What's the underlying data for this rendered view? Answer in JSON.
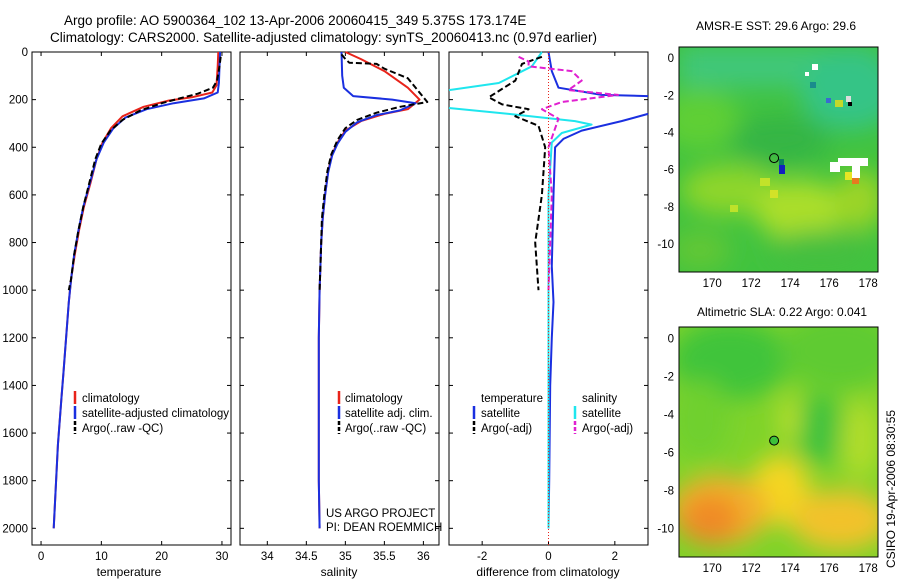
{
  "figure": {
    "title_line1": "Argo profile: AO 5900364_102 13-Apr-2006 20060415_349 5.375S 173.174E",
    "title_line2": "Climatology: CARS2000. Satellite-adjusted climatology: synTS_20060413.nc (0.97d earlier)",
    "side_label": "CSIRO 19-Apr-2006 08:30:55",
    "project_line1": "US ARGO PROJECT",
    "project_line2": "PI: DEAN ROEMMICH"
  },
  "colors": {
    "climatology": "#e8231a",
    "satellite": "#1a2fe0",
    "argo": "#000000",
    "argo_adj": "#e020d0",
    "salinity_diff": "#1fe6ee"
  },
  "chart_data": [
    {
      "type": "line",
      "id": "temperature",
      "xlabel": "temperature",
      "xlim": [
        -1.5,
        31.5
      ],
      "ylim": [
        2070,
        0
      ],
      "xticks": [
        0,
        10,
        20,
        30
      ],
      "yticks": [
        0,
        200,
        400,
        600,
        800,
        1000,
        1200,
        1400,
        1600,
        1800,
        2000
      ],
      "legend": [
        "climatology",
        "satellite-adjusted climatology",
        "Argo(..raw -QC)"
      ],
      "series": [
        {
          "name": "climatology",
          "color": "#e8231a",
          "points": [
            [
              29.4,
              0
            ],
            [
              29.3,
              60
            ],
            [
              29.1,
              140
            ],
            [
              28.4,
              170
            ],
            [
              25.0,
              190
            ],
            [
              21.0,
              205
            ],
            [
              17.0,
              230
            ],
            [
              13.5,
              270
            ],
            [
              11.6,
              320
            ],
            [
              10.2,
              380
            ],
            [
              9.2,
              450
            ],
            [
              8.2,
              550
            ],
            [
              7.1,
              650
            ],
            [
              6.3,
              750
            ],
            [
              5.6,
              850
            ],
            [
              5.0,
              950
            ],
            [
              4.6,
              1050
            ],
            [
              4.3,
              1150
            ],
            [
              4.0,
              1250
            ],
            [
              3.7,
              1350
            ],
            [
              3.4,
              1450
            ],
            [
              3.1,
              1550
            ],
            [
              2.8,
              1650
            ],
            [
              2.6,
              1750
            ],
            [
              2.4,
              1850
            ],
            [
              2.2,
              1950
            ],
            [
              2.1,
              2000
            ]
          ]
        },
        {
          "name": "satellite-adjusted climatology",
          "color": "#1a2fe0",
          "points": [
            [
              29.7,
              0
            ],
            [
              29.6,
              60
            ],
            [
              29.5,
              130
            ],
            [
              29.3,
              170
            ],
            [
              27.0,
              195
            ],
            [
              22.0,
              215
            ],
            [
              17.5,
              240
            ],
            [
              14.0,
              275
            ],
            [
              12.0,
              320
            ],
            [
              10.4,
              380
            ],
            [
              9.2,
              450
            ],
            [
              8.1,
              550
            ],
            [
              7.0,
              650
            ],
            [
              6.2,
              750
            ],
            [
              5.5,
              850
            ],
            [
              5.0,
              950
            ],
            [
              4.6,
              1050
            ],
            [
              4.3,
              1150
            ],
            [
              4.0,
              1250
            ],
            [
              3.7,
              1350
            ],
            [
              3.4,
              1450
            ],
            [
              3.1,
              1550
            ],
            [
              2.8,
              1650
            ],
            [
              2.6,
              1750
            ],
            [
              2.4,
              1850
            ],
            [
              2.2,
              1950
            ],
            [
              2.1,
              2000
            ]
          ]
        },
        {
          "name": "Argo(..raw -QC)",
          "color": "#000000",
          "dashed": true,
          "points": [
            [
              29.8,
              20
            ],
            [
              29.6,
              60
            ],
            [
              29.2,
              120
            ],
            [
              28.5,
              150
            ],
            [
              26.0,
              175
            ],
            [
              23.0,
              195
            ],
            [
              20.0,
              215
            ],
            [
              16.5,
              245
            ],
            [
              13.5,
              285
            ],
            [
              11.5,
              330
            ],
            [
              10.0,
              385
            ],
            [
              9.0,
              450
            ],
            [
              8.0,
              550
            ],
            [
              7.0,
              650
            ],
            [
              6.2,
              750
            ],
            [
              5.5,
              850
            ],
            [
              5.0,
              950
            ],
            [
              4.6,
              1000
            ]
          ]
        }
      ]
    },
    {
      "type": "line",
      "id": "salinity",
      "xlabel": "salinity",
      "xlim": [
        33.65,
        36.2
      ],
      "ylim": [
        2070,
        0
      ],
      "xticks": [
        34,
        34.5,
        35,
        35.5,
        36
      ],
      "legend": [
        "climatology",
        "satellite adj. clim.",
        "Argo(..raw -QC)"
      ],
      "series": [
        {
          "name": "climatology",
          "color": "#e8231a",
          "points": [
            [
              35.0,
              0
            ],
            [
              35.2,
              30
            ],
            [
              35.5,
              80
            ],
            [
              35.8,
              150
            ],
            [
              35.95,
              200
            ],
            [
              35.8,
              240
            ],
            [
              35.5,
              260
            ],
            [
              35.2,
              290
            ],
            [
              35.0,
              330
            ],
            [
              34.9,
              380
            ],
            [
              34.83,
              430
            ],
            [
              34.78,
              500
            ],
            [
              34.74,
              600
            ],
            [
              34.71,
              700
            ],
            [
              34.69,
              800
            ],
            [
              34.68,
              900
            ],
            [
              34.67,
              1000
            ],
            [
              34.66,
              1200
            ],
            [
              34.66,
              1500
            ],
            [
              34.66,
              1800
            ],
            [
              34.67,
              2000
            ]
          ]
        },
        {
          "name": "satellite adj. clim.",
          "color": "#1a2fe0",
          "points": [
            [
              34.95,
              0
            ],
            [
              34.96,
              100
            ],
            [
              34.98,
              150
            ],
            [
              35.1,
              185
            ],
            [
              35.6,
              200
            ],
            [
              35.9,
              215
            ],
            [
              35.7,
              245
            ],
            [
              35.4,
              265
            ],
            [
              35.15,
              295
            ],
            [
              35.0,
              335
            ],
            [
              34.9,
              385
            ],
            [
              34.83,
              435
            ],
            [
              34.78,
              505
            ],
            [
              34.74,
              600
            ],
            [
              34.71,
              700
            ],
            [
              34.69,
              800
            ],
            [
              34.68,
              900
            ],
            [
              34.67,
              1000
            ],
            [
              34.66,
              1200
            ],
            [
              34.66,
              1500
            ],
            [
              34.66,
              1800
            ],
            [
              34.67,
              2000
            ]
          ]
        },
        {
          "name": "Argo(..raw -QC)",
          "color": "#000000",
          "dashed": true,
          "points": [
            [
              34.95,
              10
            ],
            [
              35.0,
              30
            ],
            [
              35.05,
              45
            ],
            [
              35.4,
              50
            ],
            [
              35.5,
              70
            ],
            [
              35.8,
              110
            ],
            [
              35.95,
              170
            ],
            [
              36.05,
              210
            ],
            [
              35.7,
              230
            ],
            [
              35.4,
              255
            ],
            [
              35.15,
              285
            ],
            [
              35.0,
              320
            ],
            [
              34.9,
              370
            ],
            [
              34.82,
              430
            ],
            [
              34.77,
              500
            ],
            [
              34.73,
              600
            ],
            [
              34.7,
              700
            ],
            [
              34.69,
              800
            ],
            [
              34.68,
              900
            ],
            [
              34.67,
              1000
            ]
          ]
        }
      ]
    },
    {
      "type": "line",
      "id": "difference",
      "xlabel": "difference from climatology",
      "xlim": [
        -3,
        3
      ],
      "ylim": [
        2070,
        0
      ],
      "xticks": [
        -2,
        0,
        2
      ],
      "legend_temperature_heading": "temperature",
      "legend_salinity_heading": "salinity",
      "legend_temperature": [
        "satellite",
        "Argo(-adj)"
      ],
      "legend_salinity": [
        "satellite",
        "Argo(-adj)"
      ],
      "series": [
        {
          "name": "satellite (temperature)",
          "color": "#1a2fe0",
          "points": [
            [
              0,
              0
            ],
            [
              0.1,
              80
            ],
            [
              0.3,
              150
            ],
            [
              1.6,
              180
            ],
            [
              3.0,
              185
            ]
          ]
        },
        {
          "name": "satellite (temperature) deep",
          "color": "#1a2fe0",
          "points": [
            [
              3.0,
              260
            ],
            [
              2.2,
              290
            ],
            [
              1.0,
              330
            ],
            [
              0.45,
              365
            ],
            [
              0.2,
              400
            ],
            [
              0.15,
              600
            ],
            [
              0.1,
              900
            ],
            [
              0.15,
              1050
            ],
            [
              0.1,
              1200
            ],
            [
              0.05,
              1400
            ],
            [
              0.02,
              1800
            ],
            [
              0,
              2000
            ]
          ]
        },
        {
          "name": "satellite (salinity)",
          "color": "#1fe6ee",
          "points": [
            [
              -0.2,
              0
            ],
            [
              -0.5,
              60
            ],
            [
              -1.5,
              130
            ],
            [
              -3.0,
              160
            ]
          ]
        },
        {
          "name": "satellite (salinity) deep",
          "color": "#1fe6ee",
          "points": [
            [
              -3.0,
              235
            ],
            [
              -1.2,
              260
            ],
            [
              0.8,
              290
            ],
            [
              1.3,
              305
            ],
            [
              0.4,
              340
            ],
            [
              0.1,
              380
            ],
            [
              0.0,
              600
            ],
            [
              0.0,
              2000
            ]
          ]
        },
        {
          "name": "Argo(-adj) (temperature)",
          "color": "#000000",
          "dashed": true,
          "points": [
            [
              -0.2,
              20
            ],
            [
              -0.8,
              50
            ],
            [
              -1.0,
              120
            ],
            [
              -1.8,
              190
            ],
            [
              -1.4,
              220
            ],
            [
              -0.6,
              240
            ],
            [
              -1.0,
              270
            ],
            [
              -0.3,
              310
            ],
            [
              -0.1,
              400
            ],
            [
              -0.2,
              600
            ],
            [
              -0.4,
              800
            ],
            [
              -0.3,
              1000
            ]
          ]
        },
        {
          "name": "Argo(-adj) (salinity)",
          "color": "#e020d0",
          "dashed": true,
          "points": [
            [
              -0.9,
              20
            ],
            [
              -0.6,
              40
            ],
            [
              -0.6,
              60
            ],
            [
              0.7,
              80
            ],
            [
              1.0,
              120
            ],
            [
              0.6,
              160
            ],
            [
              2.1,
              180
            ],
            [
              0.4,
              210
            ],
            [
              -0.2,
              240
            ],
            [
              0.3,
              280
            ],
            [
              0.0,
              400
            ],
            [
              0.1,
              600
            ],
            [
              0.05,
              800
            ],
            [
              0.0,
              1000
            ]
          ]
        }
      ]
    },
    {
      "type": "heatmap",
      "id": "sst_map",
      "title": "AMSR-E SST: 29.6 Argo: 29.6",
      "xlim": [
        168.3,
        178.5
      ],
      "ylim": [
        -11.5,
        0.6
      ],
      "xticks": [
        170,
        172,
        174,
        176,
        178
      ],
      "yticks": [
        0,
        -2,
        -4,
        -6,
        -8,
        -10
      ],
      "argo_position": [
        173.174,
        -5.375
      ]
    },
    {
      "type": "heatmap",
      "id": "sla_map",
      "title": "Altimetric SLA: 0.22 Argo: 0.041",
      "xlim": [
        168.3,
        178.5
      ],
      "ylim": [
        -11.5,
        0.6
      ],
      "xticks": [
        170,
        172,
        174,
        176,
        178
      ],
      "yticks": [
        0,
        -2,
        -4,
        -6,
        -8,
        -10
      ],
      "argo_position": [
        173.174,
        -5.375
      ]
    }
  ]
}
